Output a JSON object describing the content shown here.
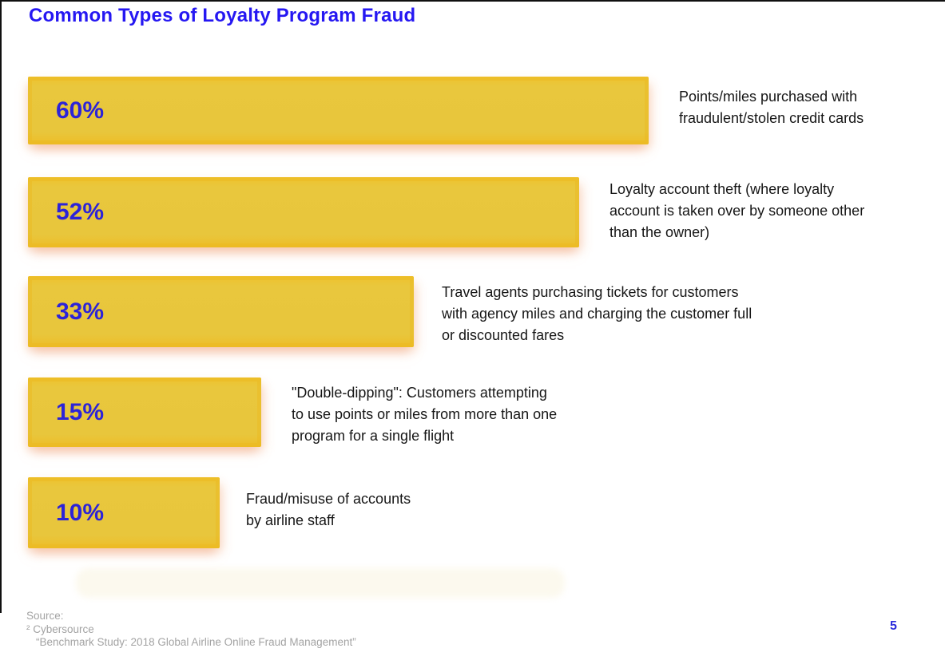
{
  "page": {
    "title": "Common Types of Loyalty Program Fraud",
    "page_number": "5"
  },
  "chart_data": {
    "type": "bar",
    "orientation": "horizontal",
    "title": "Common Types of Loyalty Program Fraud",
    "categories": [
      "Points/miles purchased with fraudulent/stolen credit cards",
      "Loyalty account theft (where loyalty account is taken over by someone other than the owner)",
      "Travel agents purchasing tickets for customers with agency miles and charging the customer full or discounted fares",
      "\"Double-dipping\": Customers attempting to use points or miles from more than one program for a single flight",
      "Fraud/misuse of accounts by airline staff"
    ],
    "values": [
      60,
      52,
      33,
      15,
      10
    ],
    "value_labels": [
      "60%",
      "52%",
      "33%",
      "15%",
      "10%"
    ],
    "unit": "%",
    "axis_visible": false,
    "legend": false,
    "bar_color": "#e8c63c",
    "value_label_color": "#2c23d8",
    "title_color": "#2517f2"
  },
  "bars": [
    {
      "pct": "60%",
      "label": "Points/miles purchased with\nfraudulent/stolen credit cards"
    },
    {
      "pct": "52%",
      "label": "Loyalty account theft (where loyalty\naccount is taken over by someone other\nthan the owner)"
    },
    {
      "pct": "33%",
      "label": "Travel agents purchasing tickets for customers\nwith agency miles and charging the customer full\nor discounted fares"
    },
    {
      "pct": "15%",
      "label": "\"Double-dipping\": Customers attempting\nto use points or miles from more than one\nprogram for a single flight"
    },
    {
      "pct": "10%",
      "label": "Fraud/misuse of accounts\nby airline staff"
    }
  ],
  "footer": {
    "source_label": "Source:",
    "source_citation": "² Cybersource",
    "source_title": "“Benchmark Study: 2018 Global Airline Online Fraud Management”"
  },
  "colors": {
    "title_blue": "#2517f2",
    "percent_blue": "#2c23d8",
    "bar_yellow": "#e8c63c",
    "source_gray": "#a3a3a3",
    "text_dark": "#161616"
  }
}
